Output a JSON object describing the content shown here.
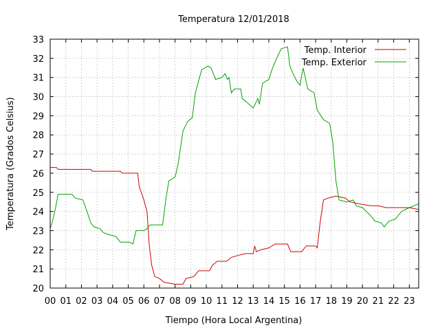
{
  "chart_data": {
    "type": "line",
    "title": "Temperatura 12/01/2018",
    "xlabel": "Tiempo (Hora Local Argentina)",
    "ylabel": "Temperatura (Grados Celsius)",
    "xlim": [
      0,
      23.6
    ],
    "ylim": [
      20,
      33
    ],
    "x_ticks": [
      {
        "v": 0,
        "label": "00"
      },
      {
        "v": 1,
        "label": "01"
      },
      {
        "v": 2,
        "label": "02"
      },
      {
        "v": 3,
        "label": "03"
      },
      {
        "v": 4,
        "label": "04"
      },
      {
        "v": 5,
        "label": "05"
      },
      {
        "v": 6,
        "label": "06"
      },
      {
        "v": 7,
        "label": "07"
      },
      {
        "v": 8,
        "label": "08"
      },
      {
        "v": 9,
        "label": "09"
      },
      {
        "v": 10,
        "label": "10"
      },
      {
        "v": 11,
        "label": "11"
      },
      {
        "v": 12,
        "label": "12"
      },
      {
        "v": 13,
        "label": "13"
      },
      {
        "v": 14,
        "label": "14"
      },
      {
        "v": 15,
        "label": "15"
      },
      {
        "v": 16,
        "label": "16"
      },
      {
        "v": 17,
        "label": "17"
      },
      {
        "v": 18,
        "label": "18"
      },
      {
        "v": 19,
        "label": "19"
      },
      {
        "v": 20,
        "label": "20"
      },
      {
        "v": 21,
        "label": "21"
      },
      {
        "v": 22,
        "label": "22"
      },
      {
        "v": 23,
        "label": "23"
      }
    ],
    "y_ticks": [
      {
        "v": 20,
        "label": "20"
      },
      {
        "v": 21,
        "label": "21"
      },
      {
        "v": 22,
        "label": "22"
      },
      {
        "v": 23,
        "label": "23"
      },
      {
        "v": 24,
        "label": "24"
      },
      {
        "v": 25,
        "label": "25"
      },
      {
        "v": 26,
        "label": "26"
      },
      {
        "v": 27,
        "label": "27"
      },
      {
        "v": 28,
        "label": "28"
      },
      {
        "v": 29,
        "label": "29"
      },
      {
        "v": 30,
        "label": "30"
      },
      {
        "v": 31,
        "label": "31"
      },
      {
        "v": 32,
        "label": "32"
      },
      {
        "v": 33,
        "label": "33"
      }
    ],
    "grid": true,
    "legend_position": "top-right",
    "series": [
      {
        "name": "Temp. Interior",
        "color": "#cc0000",
        "points": [
          [
            0,
            26.3
          ],
          [
            0.4,
            26.3
          ],
          [
            0.5,
            26.2
          ],
          [
            2.6,
            26.2
          ],
          [
            2.7,
            26.1
          ],
          [
            4.5,
            26.1
          ],
          [
            4.6,
            26.0
          ],
          [
            5.6,
            26.0
          ],
          [
            5.7,
            25.3
          ],
          [
            6.0,
            24.6
          ],
          [
            6.2,
            24.0
          ],
          [
            6.35,
            22.2
          ],
          [
            6.5,
            21.2
          ],
          [
            6.7,
            20.6
          ],
          [
            7.0,
            20.5
          ],
          [
            7.3,
            20.3
          ],
          [
            8.0,
            20.2
          ],
          [
            8.5,
            20.2
          ],
          [
            8.7,
            20.5
          ],
          [
            9.2,
            20.6
          ],
          [
            9.5,
            20.9
          ],
          [
            10.2,
            20.9
          ],
          [
            10.4,
            21.2
          ],
          [
            10.7,
            21.4
          ],
          [
            11.3,
            21.4
          ],
          [
            11.6,
            21.6
          ],
          [
            12.0,
            21.7
          ],
          [
            12.5,
            21.8
          ],
          [
            13.0,
            21.8
          ],
          [
            13.1,
            22.2
          ],
          [
            13.2,
            21.9
          ],
          [
            13.5,
            22.0
          ],
          [
            14.0,
            22.1
          ],
          [
            14.4,
            22.3
          ],
          [
            15.2,
            22.3
          ],
          [
            15.4,
            21.9
          ],
          [
            16.1,
            21.9
          ],
          [
            16.4,
            22.2
          ],
          [
            17.0,
            22.2
          ],
          [
            17.1,
            22.1
          ],
          [
            17.3,
            23.5
          ],
          [
            17.5,
            24.6
          ],
          [
            17.8,
            24.7
          ],
          [
            18.3,
            24.8
          ],
          [
            18.9,
            24.7
          ],
          [
            19.2,
            24.5
          ],
          [
            19.8,
            24.4
          ],
          [
            20.5,
            24.3
          ],
          [
            21.0,
            24.3
          ],
          [
            21.5,
            24.2
          ],
          [
            22.0,
            24.2
          ],
          [
            22.5,
            24.2
          ],
          [
            23.0,
            24.2
          ],
          [
            23.6,
            24.1
          ]
        ]
      },
      {
        "name": "Temp. Exterior",
        "color": "#00a000",
        "points": [
          [
            0,
            23.1
          ],
          [
            0.15,
            23.5
          ],
          [
            0.35,
            24.2
          ],
          [
            0.5,
            24.9
          ],
          [
            1.4,
            24.9
          ],
          [
            1.6,
            24.7
          ],
          [
            2.1,
            24.6
          ],
          [
            2.4,
            23.9
          ],
          [
            2.6,
            23.4
          ],
          [
            2.8,
            23.2
          ],
          [
            3.2,
            23.1
          ],
          [
            3.4,
            22.9
          ],
          [
            3.7,
            22.8
          ],
          [
            4.2,
            22.7
          ],
          [
            4.5,
            22.4
          ],
          [
            5.1,
            22.4
          ],
          [
            5.3,
            22.3
          ],
          [
            5.5,
            23.0
          ],
          [
            6.0,
            23.0
          ],
          [
            6.2,
            23.1
          ],
          [
            6.4,
            23.3
          ],
          [
            7.2,
            23.3
          ],
          [
            7.4,
            24.6
          ],
          [
            7.6,
            25.6
          ],
          [
            8.0,
            25.8
          ],
          [
            8.2,
            26.5
          ],
          [
            8.5,
            28.2
          ],
          [
            8.8,
            28.7
          ],
          [
            9.1,
            28.9
          ],
          [
            9.3,
            30.2
          ],
          [
            9.7,
            31.4
          ],
          [
            10.1,
            31.6
          ],
          [
            10.3,
            31.5
          ],
          [
            10.6,
            30.9
          ],
          [
            11.0,
            31.0
          ],
          [
            11.2,
            31.2
          ],
          [
            11.35,
            30.9
          ],
          [
            11.45,
            31.0
          ],
          [
            11.6,
            30.2
          ],
          [
            11.8,
            30.4
          ],
          [
            12.2,
            30.4
          ],
          [
            12.3,
            29.9
          ],
          [
            12.6,
            29.7
          ],
          [
            13.0,
            29.4
          ],
          [
            13.3,
            29.9
          ],
          [
            13.4,
            29.6
          ],
          [
            13.6,
            30.7
          ],
          [
            14.0,
            30.9
          ],
          [
            14.2,
            31.4
          ],
          [
            14.5,
            32.0
          ],
          [
            14.8,
            32.5
          ],
          [
            15.2,
            32.6
          ],
          [
            15.35,
            31.6
          ],
          [
            15.55,
            31.2
          ],
          [
            15.8,
            30.8
          ],
          [
            16.0,
            30.6
          ],
          [
            16.2,
            31.5
          ],
          [
            16.5,
            30.4
          ],
          [
            16.9,
            30.2
          ],
          [
            17.1,
            29.3
          ],
          [
            17.5,
            28.8
          ],
          [
            17.9,
            28.6
          ],
          [
            18.1,
            27.6
          ],
          [
            18.3,
            25.6
          ],
          [
            18.5,
            24.6
          ],
          [
            19.0,
            24.5
          ],
          [
            19.4,
            24.6
          ],
          [
            19.6,
            24.3
          ],
          [
            20.0,
            24.2
          ],
          [
            20.5,
            23.8
          ],
          [
            20.8,
            23.5
          ],
          [
            21.2,
            23.4
          ],
          [
            21.4,
            23.2
          ],
          [
            21.7,
            23.5
          ],
          [
            22.1,
            23.6
          ],
          [
            22.5,
            24.0
          ],
          [
            23.0,
            24.2
          ],
          [
            23.3,
            24.3
          ],
          [
            23.6,
            24.4
          ]
        ]
      }
    ]
  }
}
